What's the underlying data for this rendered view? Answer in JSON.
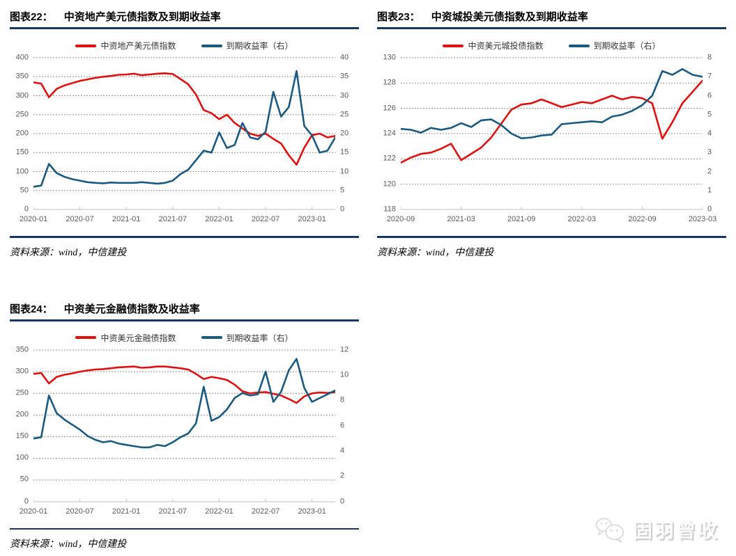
{
  "colors": {
    "accent_rule": "#17375e",
    "index_red": "#df1010",
    "yield_blue": "#1a5a80",
    "grid_line": "#8f8f8f",
    "axis_line": "#bfbfbf",
    "axis_text": "#595959",
    "watermark_gray": "#d9d9d9"
  },
  "watermark": {
    "icon": "wechat-icon",
    "text": "固羽曾收"
  },
  "chart_data": [
    {
      "type": "line",
      "fig_label": "图表22：",
      "title": "中资地产美元债指数及到期收益率",
      "source": "资料来源：wind，中信建投",
      "x_labels": [
        "2020-01",
        "2020-07",
        "2021-01",
        "2021-07",
        "2022-01",
        "2022-07",
        "2023-01"
      ],
      "x_tick_months": [
        0,
        6,
        12,
        18,
        24,
        30,
        36
      ],
      "n_points": 40,
      "left_axis": {
        "range": [
          0,
          400
        ],
        "ticks": [
          0,
          50,
          100,
          150,
          200,
          250,
          300,
          350,
          400
        ]
      },
      "right_axis": {
        "range": [
          0,
          40
        ],
        "ticks": [
          0,
          5,
          10,
          15,
          20,
          25,
          30,
          35,
          40
        ]
      },
      "grid": "dashed-horizontal",
      "legend_position": "top-center",
      "series": [
        {
          "name": "中资地产美元债指数",
          "axis": "left",
          "color_key": "index_red",
          "values": [
            335,
            332,
            296,
            318,
            327,
            333,
            339,
            343,
            347,
            350,
            352,
            355,
            356,
            358,
            354,
            356,
            358,
            359,
            357,
            344,
            330,
            303,
            262,
            254,
            238,
            250,
            228,
            214,
            200,
            194,
            200,
            186,
            174,
            143,
            118,
            163,
            196,
            200,
            190,
            194
          ]
        },
        {
          "name": "到期收益率（右）",
          "axis": "right",
          "color_key": "yield_blue",
          "values": [
            6.0,
            6.3,
            12.0,
            9.6,
            8.6,
            8.0,
            7.6,
            7.2,
            7.0,
            6.9,
            7.1,
            7.0,
            7.0,
            7.0,
            7.2,
            7.0,
            6.8,
            7.0,
            7.6,
            9.3,
            10.5,
            13.0,
            15.5,
            15.0,
            20.3,
            16.2,
            17.0,
            22.8,
            19.0,
            18.5,
            20.5,
            31.0,
            24.5,
            27.0,
            36.5,
            22.0,
            19.5,
            15.0,
            15.5,
            19.0
          ]
        }
      ]
    },
    {
      "type": "line",
      "fig_label": "图表23：",
      "title": "中资城投美元债指数及到期收益率",
      "source": "资料来源：wind，中信建投",
      "x_labels": [
        "2020-09",
        "2021-03",
        "2021-09",
        "2022-03",
        "2022-09",
        "2023-03"
      ],
      "x_tick_months": [
        0,
        6,
        12,
        18,
        24,
        30
      ],
      "n_points": 31,
      "left_axis": {
        "range": [
          118,
          130
        ],
        "ticks": [
          118,
          120,
          122,
          124,
          126,
          128,
          130
        ]
      },
      "right_axis": {
        "range": [
          0,
          8
        ],
        "ticks": [
          0,
          1,
          2,
          3,
          4,
          5,
          6,
          7,
          8
        ]
      },
      "grid": "dashed-horizontal",
      "legend_position": "top-center",
      "series": [
        {
          "name": "中资美元城投债指数",
          "axis": "left",
          "color_key": "index_red",
          "values": [
            121.7,
            122.1,
            122.4,
            122.5,
            122.8,
            123.2,
            121.9,
            122.4,
            122.9,
            123.7,
            124.8,
            125.9,
            126.3,
            126.4,
            126.7,
            126.4,
            126.1,
            126.3,
            126.5,
            126.4,
            126.7,
            127.0,
            126.7,
            126.9,
            126.8,
            126.4,
            123.6,
            124.9,
            126.4,
            127.3,
            128.2
          ]
        },
        {
          "name": "到期收益率（右）",
          "axis": "right",
          "color_key": "yield_blue",
          "values": [
            4.25,
            4.2,
            4.05,
            4.3,
            4.2,
            4.3,
            4.55,
            4.35,
            4.7,
            4.75,
            4.45,
            4.0,
            3.75,
            3.8,
            3.9,
            3.95,
            4.5,
            4.55,
            4.6,
            4.65,
            4.6,
            4.9,
            5.0,
            5.2,
            5.5,
            6.0,
            7.3,
            7.1,
            7.4,
            7.1,
            7.0
          ]
        }
      ]
    },
    {
      "type": "line",
      "fig_label": "图表24：",
      "title": "中资美元金融债指数及收益率",
      "source": "资料来源：wind，中信建投",
      "x_labels": [
        "2020-01",
        "2020-07",
        "2021-01",
        "2021-07",
        "2022-01",
        "2022-07",
        "2023-01"
      ],
      "x_tick_months": [
        0,
        6,
        12,
        18,
        24,
        30,
        36
      ],
      "n_points": 40,
      "left_axis": {
        "range": [
          0,
          350
        ],
        "ticks": [
          0,
          50,
          100,
          150,
          200,
          250,
          300,
          350
        ]
      },
      "right_axis": {
        "range": [
          0,
          12
        ],
        "ticks": [
          0,
          2,
          4,
          6,
          8,
          10,
          12
        ]
      },
      "grid": "dashed-horizontal",
      "legend_position": "top-center",
      "series": [
        {
          "name": "中资美元金融债指数",
          "axis": "left",
          "color_key": "index_red",
          "values": [
            295,
            297,
            273,
            288,
            293,
            296,
            300,
            303,
            305,
            306,
            308,
            310,
            311,
            312,
            309,
            310,
            312,
            312,
            310,
            308,
            305,
            295,
            283,
            288,
            285,
            281,
            270,
            255,
            250,
            252,
            253,
            249,
            245,
            237,
            228,
            243,
            250,
            252,
            251,
            253
          ]
        },
        {
          "name": "到期收益率（右）",
          "axis": "right",
          "color_key": "yield_blue",
          "values": [
            5.0,
            5.1,
            8.4,
            7.0,
            6.5,
            6.1,
            5.7,
            5.2,
            4.9,
            4.7,
            4.8,
            4.6,
            4.5,
            4.4,
            4.3,
            4.3,
            4.5,
            4.4,
            4.7,
            5.1,
            5.4,
            6.2,
            9.1,
            6.4,
            6.7,
            7.3,
            8.2,
            8.6,
            8.4,
            8.5,
            10.3,
            7.9,
            8.7,
            10.4,
            11.3,
            9.0,
            7.9,
            8.2,
            8.5,
            8.8
          ]
        }
      ]
    }
  ]
}
